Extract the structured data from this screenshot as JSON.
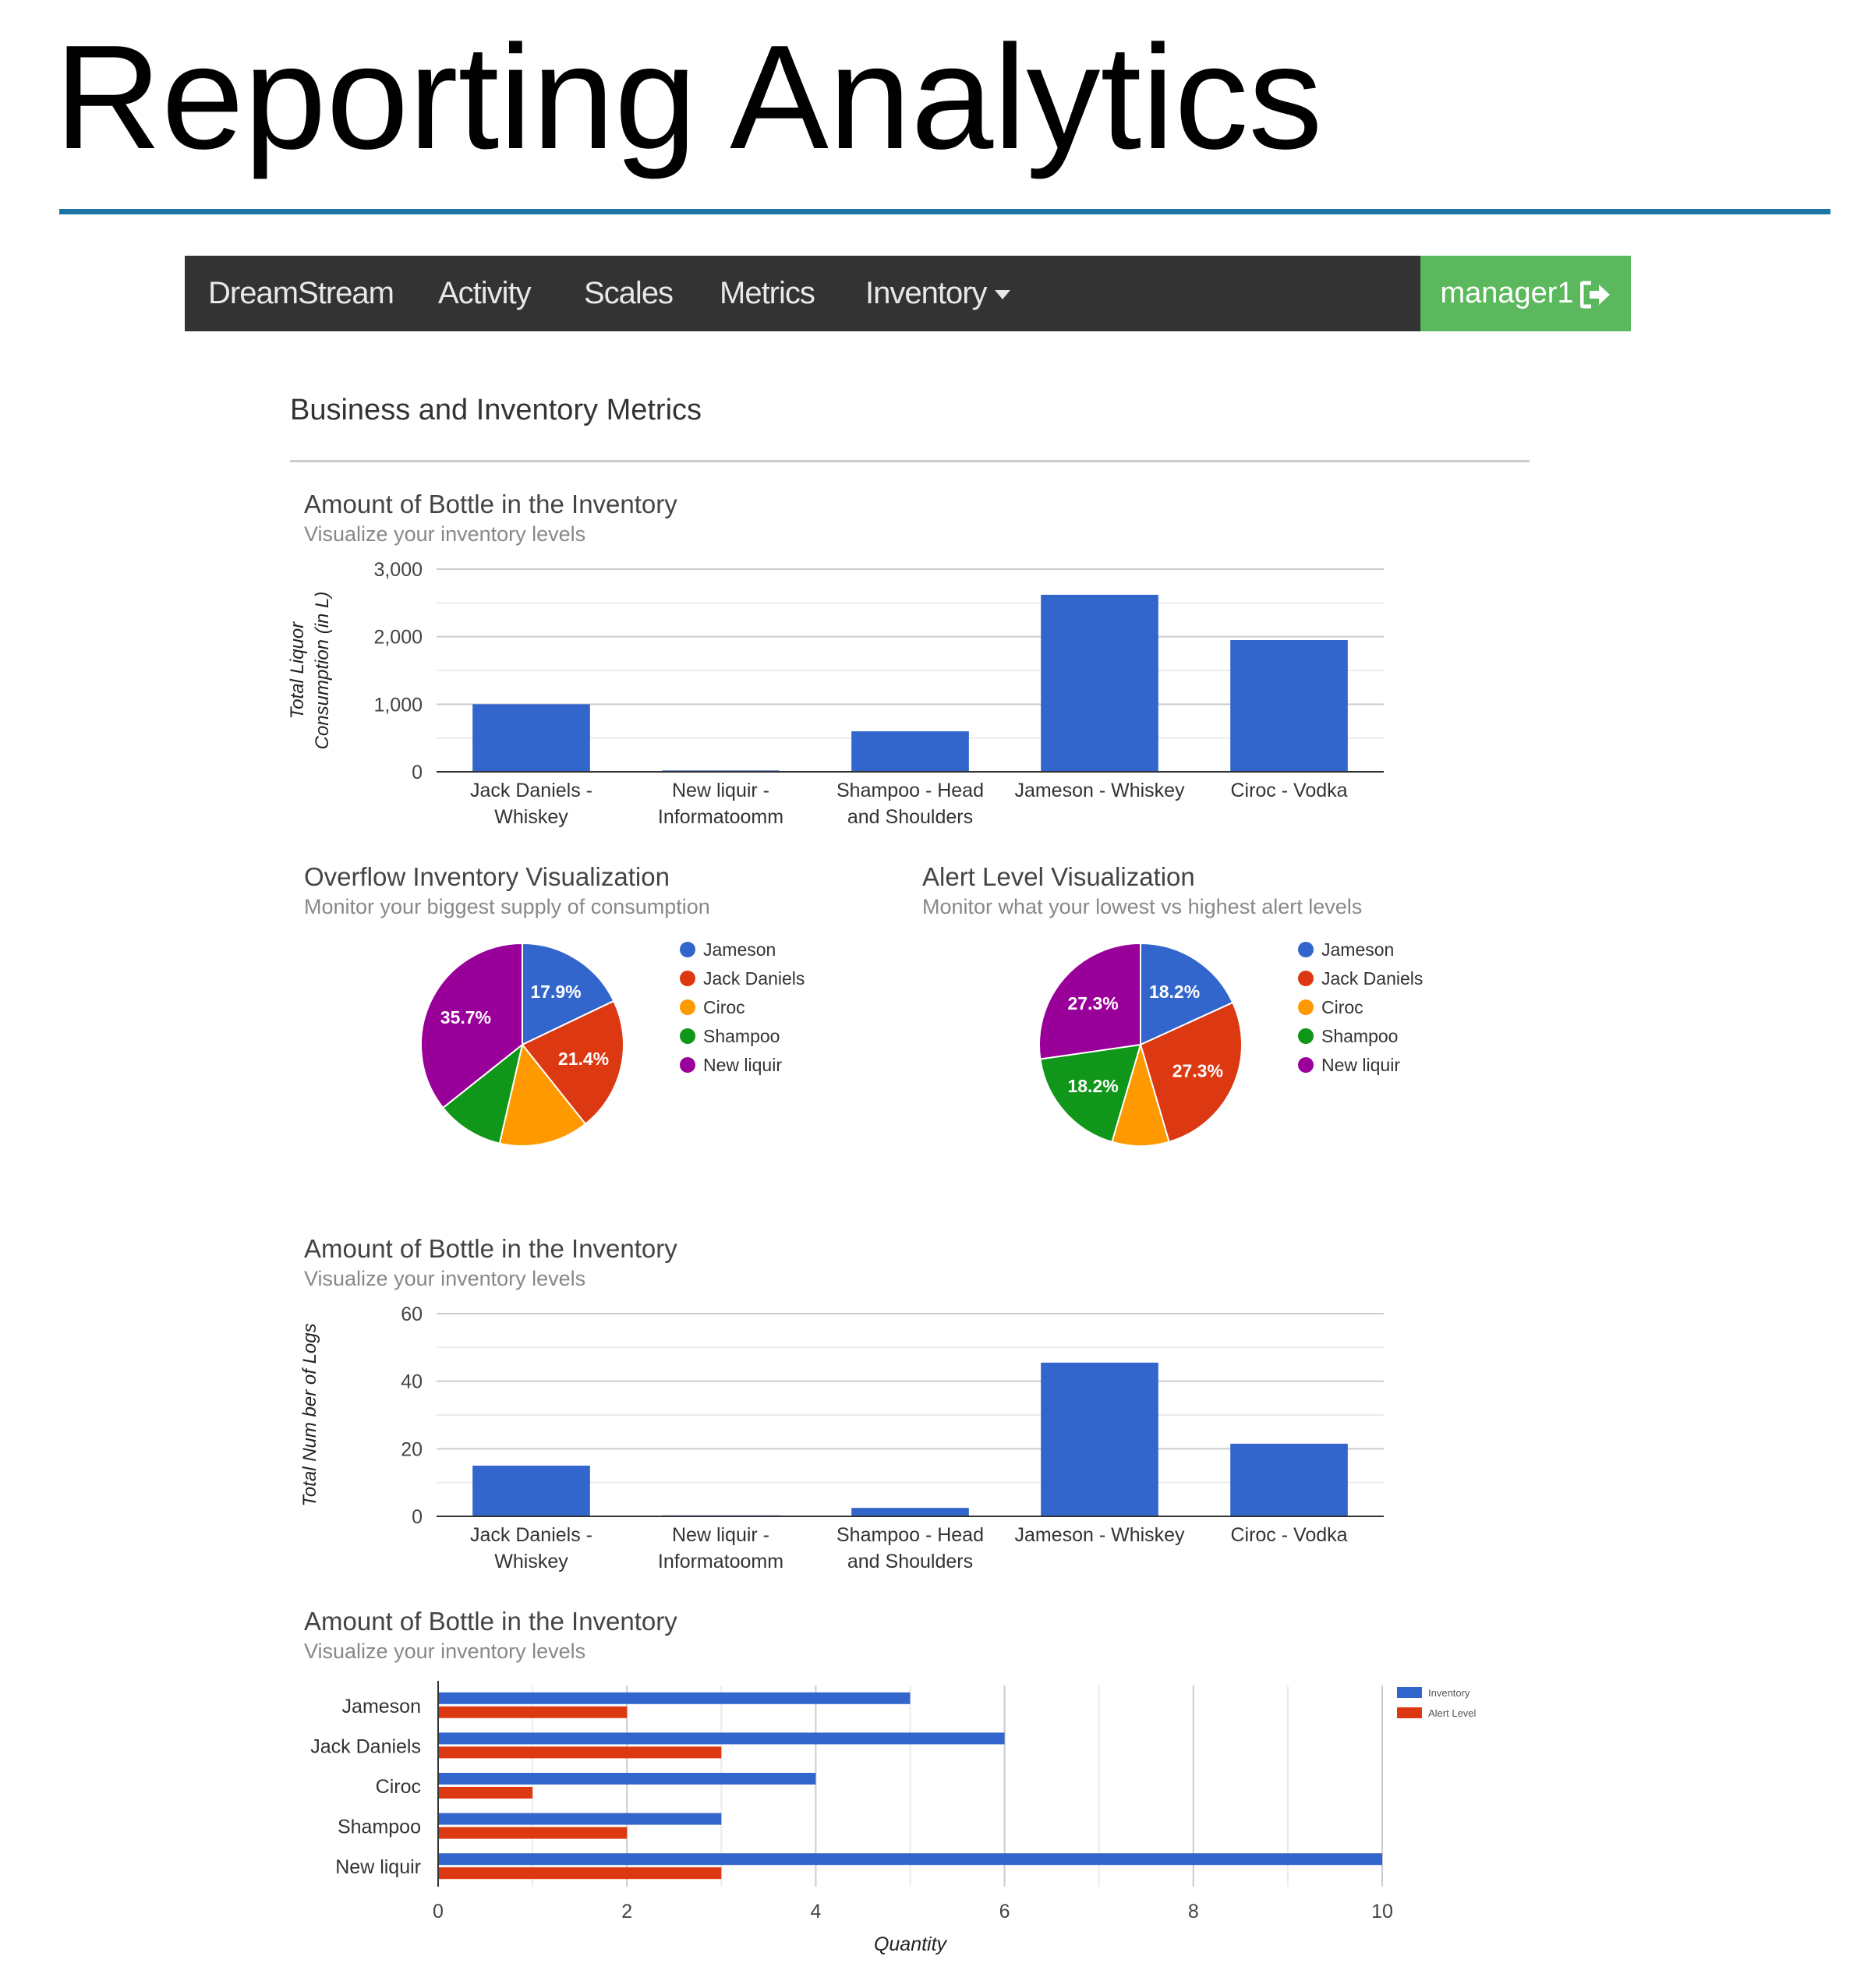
{
  "slide": {
    "title": "Reporting Analytics",
    "rule_color": "#1b74a6"
  },
  "navbar": {
    "brand": "DreamStream",
    "items": [
      "Activity",
      "Scales",
      "Metrics",
      "Inventory"
    ],
    "user": "manager1",
    "user_icon": "sign-out-icon",
    "user_bg": "#5cb85c",
    "bg": "#333333"
  },
  "page": {
    "heading": "Business and Inventory Metrics"
  },
  "colors": {
    "blue": "#3366cc",
    "red": "#dc3912",
    "orange": "#ff9900",
    "green": "#109618",
    "purple": "#990099"
  },
  "sections": {
    "bar1": {
      "title": "Amount of Bottle in the Inventory",
      "subtitle": "Visualize your inventory levels"
    },
    "pie1": {
      "title": "Overflow Inventory Visualization",
      "subtitle": "Monitor your biggest supply of consumption"
    },
    "pie2": {
      "title": "Alert Level Visualization",
      "subtitle": "Monitor what your lowest vs highest alert levels"
    },
    "bar2": {
      "title": "Amount of Bottle in the Inventory",
      "subtitle": "Visualize your inventory levels"
    },
    "hbar": {
      "title": "Amount of Bottle in the Inventory",
      "subtitle": "Visualize your inventory levels"
    }
  },
  "chart_data": [
    {
      "type": "bar",
      "categories": [
        [
          "Jack Daniels -",
          "Whiskey"
        ],
        [
          "New liquir -",
          "Informatoomm"
        ],
        [
          "Shampoo - Head",
          "and Shoulders"
        ],
        [
          "Jameson - Whiskey"
        ],
        [
          "Ciroc - Vodka"
        ]
      ],
      "values": [
        1000,
        20,
        600,
        2620,
        1950
      ],
      "ylabel": [
        "Total Liquor",
        "Consumption (in L)"
      ],
      "ylim": [
        0,
        3000
      ],
      "yticks": [
        "0",
        "1,000",
        "2,000",
        "3,000"
      ],
      "grid": true
    },
    {
      "type": "pie",
      "labels": [
        "Jameson",
        "Jack Daniels",
        "Ciroc",
        "Shampoo",
        "New liquir"
      ],
      "values": [
        17.9,
        21.4,
        14.3,
        10.7,
        35.7
      ],
      "slice_labels": [
        "17.9%",
        "21.4%",
        "",
        "",
        "35.7%"
      ],
      "legend": "right"
    },
    {
      "type": "pie",
      "labels": [
        "Jameson",
        "Jack Daniels",
        "Ciroc",
        "Shampoo",
        "New liquir"
      ],
      "values": [
        18.2,
        27.3,
        9.1,
        18.2,
        27.3
      ],
      "slice_labels": [
        "18.2%",
        "27.3%",
        "",
        "18.2%",
        "27.3%"
      ],
      "legend": "right"
    },
    {
      "type": "bar",
      "categories": [
        [
          "Jack Daniels -",
          "Whiskey"
        ],
        [
          "New liquir -",
          "Informatoomm"
        ],
        [
          "Shampoo - Head",
          "and Shoulders"
        ],
        [
          "Jameson - Whiskey"
        ],
        [
          "Ciroc - Vodka"
        ]
      ],
      "values": [
        15,
        0.3,
        2.5,
        45.5,
        21.5
      ],
      "ylabel": [
        "Total Num ber of Logs"
      ],
      "ylim": [
        0,
        60
      ],
      "yticks": [
        "0",
        "20",
        "40",
        "60"
      ],
      "grid": true
    },
    {
      "type": "bar",
      "orientation": "horizontal",
      "categories": [
        "Jameson",
        "Jack Daniels",
        "Ciroc",
        "Shampoo",
        "New liquir"
      ],
      "series": [
        {
          "name": "Inventory",
          "values": [
            5,
            6,
            4,
            3,
            10
          ]
        },
        {
          "name": "Alert Level",
          "values": [
            2,
            3,
            1,
            2,
            3
          ]
        }
      ],
      "xlabel": "Quantity",
      "xlim": [
        0,
        10
      ],
      "xticks": [
        "0",
        "2",
        "4",
        "6",
        "8",
        "10"
      ],
      "legend": "top-right",
      "grid": true
    }
  ]
}
